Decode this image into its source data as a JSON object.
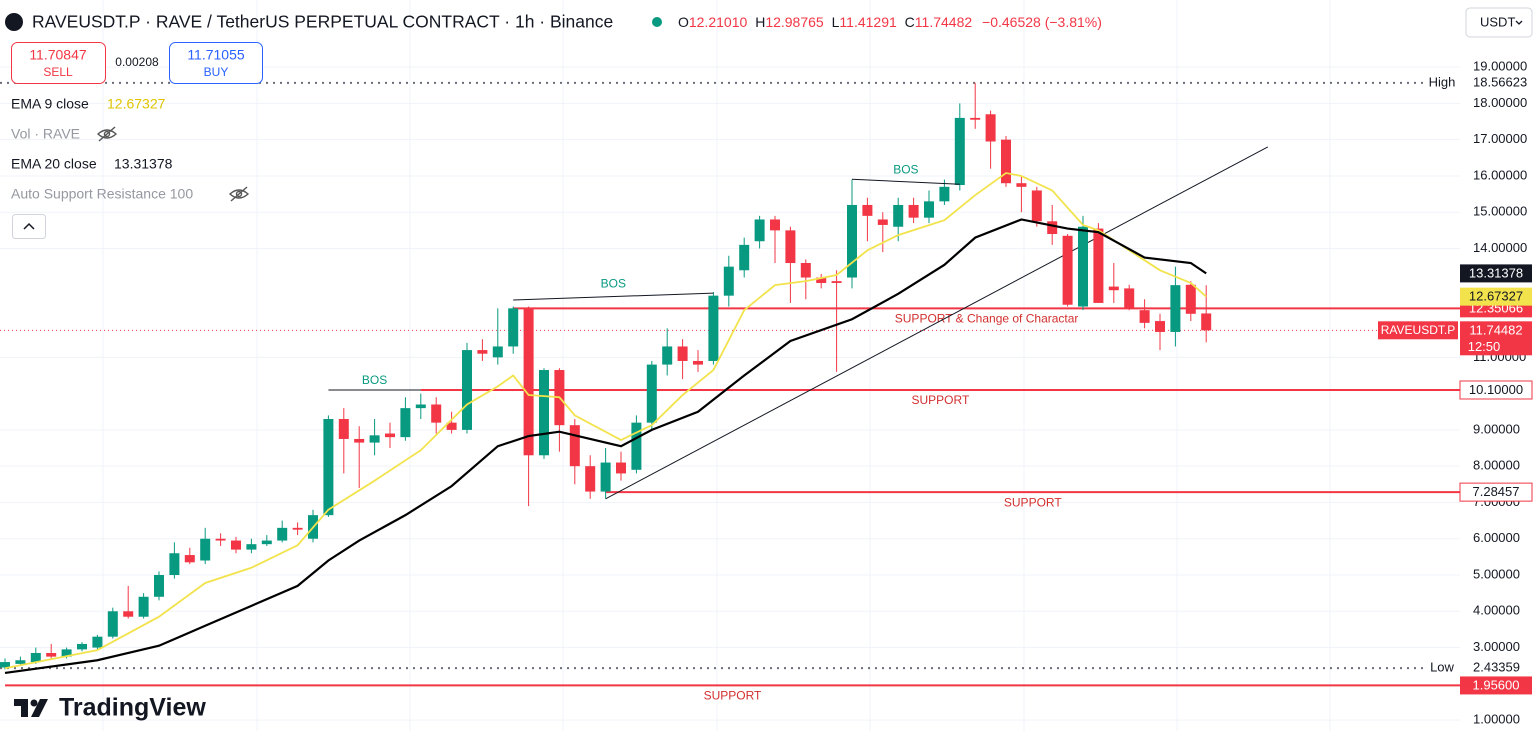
{
  "header": {
    "symbol": "RAVEUSDT.P · RAVE / TetherUS PERPETUAL CONTRACT · 1h · Binance",
    "ohlc": [
      {
        "key": "O",
        "value": "12.21010"
      },
      {
        "key": "H",
        "value": "12.98765"
      },
      {
        "key": "L",
        "value": "11.41291"
      },
      {
        "key": "C",
        "value": "11.74482"
      }
    ],
    "change": "−0.46528 (−3.81%)",
    "currency": "USDT"
  },
  "trade": {
    "sell_price": "11.70847",
    "sell": "SELL",
    "spread": "0.00208",
    "buy_price": "11.71055",
    "buy": "BUY"
  },
  "indicators": [
    "Vol · RAVE",
    "Auto Support Resistance 100"
  ],
  "brand": "TradingView",
  "chart_data": {
    "type": "candlestick",
    "ylim": [
      0.7,
      20.85
    ],
    "yticks": [
      {
        "value": 1,
        "label": "1.00000"
      },
      {
        "value": 3,
        "label": "3.00000"
      },
      {
        "value": 4,
        "label": "4.00000"
      },
      {
        "value": 5,
        "label": "5.00000"
      },
      {
        "value": 6,
        "label": "6.00000"
      },
      {
        "value": 7,
        "label": "7.00000"
      },
      {
        "value": 8,
        "label": "8.00000"
      },
      {
        "value": 9,
        "label": "9.00000"
      },
      {
        "value": 11,
        "label": "11.00000"
      },
      {
        "value": 14,
        "label": "14.00000"
      },
      {
        "value": 15,
        "label": "15.00000"
      },
      {
        "value": 16,
        "label": "16.00000"
      },
      {
        "value": 17,
        "label": "17.00000"
      },
      {
        "value": 18,
        "label": "18.00000"
      },
      {
        "value": 19,
        "label": "19.00000"
      }
    ],
    "grid": true,
    "up_color": "#089981",
    "down_color": "#f23645",
    "open": [
      2.45,
      2.55,
      2.6,
      2.85,
      2.75,
      2.95,
      3.0,
      3.3,
      4.0,
      3.85,
      4.4,
      5.0,
      5.55,
      5.4,
      6.0,
      5.95,
      5.7,
      5.85,
      5.95,
      6.3,
      6.0,
      6.65,
      9.3,
      8.75,
      8.65,
      8.9,
      8.8,
      9.6,
      9.7,
      9.2,
      9.0,
      11.2,
      11.0,
      11.3,
      12.35,
      8.3,
      10.65,
      9.13,
      8.0,
      7.3,
      8.1,
      7.9,
      9.2,
      10.8,
      11.3,
      10.9,
      10.9,
      12.7,
      13.4,
      14.2,
      14.8,
      14.5,
      13.6,
      13.2,
      13.1,
      13.2,
      15.2,
      14.8,
      14.6,
      15.2,
      14.85,
      15.3,
      15.75,
      17.6,
      17.7,
      17.0,
      15.8,
      15.6,
      14.75,
      14.35,
      12.4,
      14.55,
      12.95,
      12.9,
      12.3,
      12.0,
      11.7,
      13.0,
      12.2101
    ],
    "high": [
      2.7,
      2.75,
      3.0,
      3.1,
      3.0,
      3.15,
      3.35,
      4.1,
      4.7,
      4.5,
      5.1,
      5.9,
      5.75,
      6.3,
      6.15,
      6.05,
      6.0,
      6.1,
      6.5,
      6.45,
      6.8,
      9.4,
      9.6,
      9.1,
      9.3,
      9.2,
      9.9,
      10.0,
      9.9,
      9.5,
      11.4,
      11.5,
      12.35,
      12.4,
      12.4,
      10.7,
      10.7,
      9.3,
      8.3,
      8.5,
      8.4,
      9.4,
      10.9,
      11.8,
      11.5,
      11.2,
      12.8,
      13.8,
      14.3,
      14.9,
      14.9,
      14.6,
      13.7,
      13.3,
      13.4,
      15.9,
      15.4,
      15.0,
      15.4,
      15.4,
      15.6,
      15.9,
      18.0,
      18.56623,
      17.8,
      17.1,
      16.0,
      15.7,
      15.2,
      14.4,
      14.9,
      14.7,
      13.6,
      13.0,
      12.6,
      12.2,
      13.5,
      13.1,
      12.98765
    ],
    "low": [
      2.4,
      2.5,
      2.55,
      2.7,
      2.7,
      2.9,
      2.95,
      3.25,
      3.8,
      3.8,
      4.3,
      4.9,
      5.3,
      5.3,
      5.8,
      5.6,
      5.6,
      5.8,
      5.9,
      6.1,
      5.9,
      6.6,
      7.8,
      7.4,
      8.3,
      8.5,
      8.7,
      9.3,
      8.9,
      8.9,
      8.9,
      10.9,
      10.8,
      11.1,
      6.9,
      8.2,
      8.4,
      7.5,
      7.1,
      7.1,
      7.6,
      7.8,
      9.0,
      10.5,
      10.4,
      10.6,
      10.8,
      12.4,
      13.2,
      14.0,
      13.6,
      12.5,
      12.6,
      12.9,
      10.6,
      12.9,
      14.2,
      13.9,
      14.2,
      14.7,
      14.7,
      15.2,
      15.6,
      17.3,
      16.2,
      15.7,
      15.0,
      14.6,
      14.1,
      12.4,
      12.3,
      12.5,
      12.5,
      12.3,
      11.8,
      11.2,
      11.3,
      12.0,
      11.41291
    ],
    "close": [
      2.6,
      2.65,
      2.85,
      2.75,
      2.95,
      3.1,
      3.3,
      4.0,
      3.85,
      4.4,
      5.0,
      5.6,
      5.35,
      6.0,
      5.95,
      5.7,
      5.85,
      5.95,
      6.3,
      6.25,
      6.65,
      9.3,
      8.75,
      8.65,
      8.85,
      8.8,
      9.6,
      9.7,
      9.2,
      9.0,
      11.2,
      11.1,
      11.3,
      12.35,
      8.3,
      10.65,
      9.13,
      8.0,
      7.3,
      8.1,
      7.8,
      9.2,
      10.8,
      11.3,
      10.9,
      10.8,
      12.7,
      13.5,
      14.1,
      14.8,
      14.5,
      13.6,
      13.2,
      13.05,
      13.05,
      15.2,
      14.9,
      14.65,
      15.2,
      14.85,
      15.3,
      15.7,
      17.6,
      17.55,
      16.95,
      15.8,
      15.7,
      14.75,
      14.4,
      12.45,
      14.6,
      12.5,
      12.85,
      12.35,
      11.95,
      11.7,
      12.99,
      12.2,
      11.74482
    ],
    "series": [
      {
        "name": "EMA 9 close",
        "color": "#f2e34c",
        "x": [
          0,
          6,
          10,
          13,
          16,
          19,
          21,
          24,
          27,
          30,
          32,
          33,
          34,
          36,
          37,
          40,
          42,
          44,
          46,
          48,
          50,
          52,
          54,
          56,
          58,
          61,
          63,
          65,
          66,
          68,
          70,
          71,
          73,
          75,
          77,
          78
        ],
        "values": [
          2.43,
          2.93,
          3.85,
          4.78,
          5.2,
          5.82,
          6.8,
          7.6,
          8.44,
          9.7,
          10.2,
          10.5,
          9.96,
          9.9,
          9.4,
          8.72,
          9.13,
          9.96,
          10.65,
          12.3,
          12.99,
          13.1,
          13.27,
          13.95,
          14.37,
          14.78,
          15.47,
          16.08,
          16.0,
          15.6,
          14.65,
          14.5,
          13.95,
          13.4,
          13.05,
          12.67327
        ]
      },
      {
        "name": "EMA 20 close",
        "color": "#000000",
        "x": [
          0,
          6,
          10,
          13,
          16,
          19,
          21,
          23,
          26,
          29,
          32,
          34,
          36,
          38,
          40,
          42,
          45,
          48,
          51,
          55,
          58,
          61,
          63,
          66,
          69,
          71,
          74,
          77,
          78
        ],
        "values": [
          2.3,
          2.65,
          3.05,
          3.6,
          4.15,
          4.7,
          5.4,
          5.95,
          6.65,
          7.45,
          8.55,
          8.83,
          8.95,
          8.75,
          8.55,
          9.0,
          9.5,
          10.5,
          11.45,
          12.05,
          12.75,
          13.55,
          14.3,
          14.8,
          14.55,
          14.45,
          13.75,
          13.6,
          13.31378
        ]
      }
    ],
    "levels": [
      {
        "value": 12.35066,
        "label": "12.35066",
        "text": "SUPPORT & Change of Charactar",
        "from": 33,
        "style": "red"
      },
      {
        "value": 10.1,
        "label": "10.10000",
        "text": "SUPPORT",
        "from": 27,
        "style": "outline"
      },
      {
        "value": 7.28457,
        "label": "7.28457",
        "text": "SUPPORT",
        "from": 39,
        "style": "outline"
      },
      {
        "value": 1.956,
        "label": "1.95600",
        "text": "SUPPORT",
        "from": 0,
        "style": "red"
      }
    ],
    "bos": [
      {
        "text": "BOS",
        "from": 21,
        "to": 27,
        "values": [
          10.1,
          10.1
        ]
      },
      {
        "text": "BOS",
        "from": 33,
        "to": 46,
        "values": [
          12.58,
          12.77
        ]
      },
      {
        "text": "BOS",
        "from": 55,
        "to": 62,
        "values": [
          15.91,
          15.77
        ]
      }
    ],
    "trendline": {
      "x": [
        39,
        82
      ],
      "values": [
        7.1,
        16.8
      ]
    },
    "high_marker": {
      "text": "High",
      "value": 18.56623
    },
    "low_marker": {
      "text": "Low",
      "value": 2.43359
    },
    "last": {
      "symbol": "RAVEUSDT.P",
      "countdown": "12:50"
    }
  }
}
